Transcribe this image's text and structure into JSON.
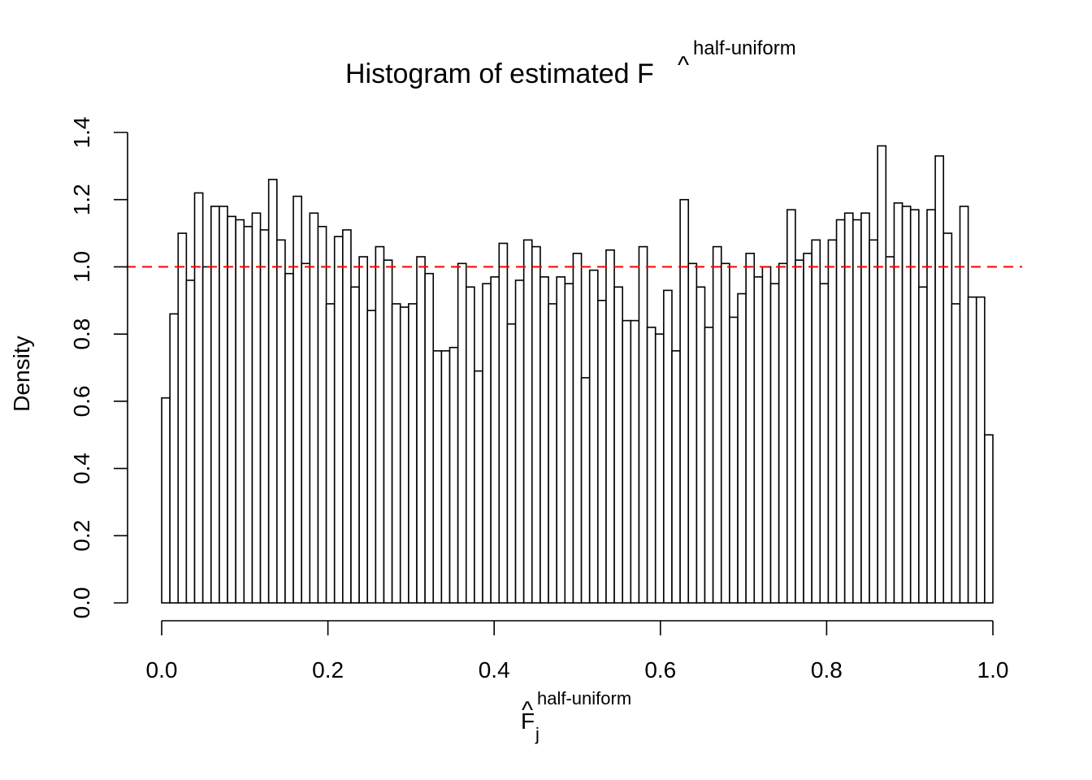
{
  "chart_data": {
    "type": "histogram",
    "title": "Histogram of estimated F",
    "title_hat": "^",
    "title_superscript": "half-uniform",
    "xlabel": "F",
    "xlabel_hat": "^",
    "xlabel_subscript": "j",
    "xlabel_superscript": "half-uniform",
    "ylabel": "Density",
    "xlim": [
      0,
      1
    ],
    "ylim": [
      0,
      1.4
    ],
    "x_ticks": [
      0.0,
      0.2,
      0.4,
      0.6,
      0.8,
      1.0
    ],
    "x_tick_labels": [
      "0.0",
      "0.2",
      "0.4",
      "0.6",
      "0.8",
      "1.0"
    ],
    "y_ticks": [
      0.0,
      0.2,
      0.4,
      0.6,
      0.8,
      1.0,
      1.2,
      1.4
    ],
    "y_tick_labels": [
      "0.0",
      "0.2",
      "0.4",
      "0.6",
      "0.8",
      "1.0",
      "1.2",
      "1.4"
    ],
    "bin_width": 0.01,
    "bin_start": 0,
    "values": [
      0.61,
      0.86,
      1.1,
      0.96,
      1.22,
      1.0,
      1.18,
      1.18,
      1.15,
      1.14,
      1.12,
      1.16,
      1.11,
      1.26,
      1.08,
      0.98,
      1.21,
      1.01,
      1.16,
      1.12,
      0.89,
      1.09,
      1.11,
      0.94,
      1.03,
      0.87,
      1.06,
      1.02,
      0.89,
      0.88,
      0.89,
      1.03,
      0.98,
      0.75,
      0.75,
      0.76,
      1.01,
      0.94,
      0.69,
      0.95,
      0.97,
      1.07,
      0.83,
      0.96,
      1.08,
      1.06,
      0.97,
      0.89,
      0.97,
      0.95,
      1.04,
      0.67,
      0.99,
      0.9,
      1.05,
      0.94,
      0.84,
      0.84,
      1.06,
      0.82,
      0.8,
      0.93,
      0.75,
      1.2,
      1.01,
      0.94,
      0.82,
      1.06,
      1.01,
      0.85,
      0.92,
      1.04,
      0.97,
      1.0,
      0.95,
      1.01,
      1.17,
      1.02,
      1.04,
      1.08,
      0.95,
      1.08,
      1.14,
      1.16,
      1.14,
      1.16,
      1.08,
      1.36,
      1.03,
      1.19,
      1.18,
      1.17,
      0.94,
      1.17,
      1.33,
      1.1,
      0.89,
      1.18,
      0.91,
      0.91,
      0.5
    ],
    "reference_line": {
      "y": 1.0,
      "style": "dashed",
      "color": "#ff0000"
    },
    "bar_fill": "#ffffff",
    "bar_stroke": "#000000",
    "grid": false,
    "legend": "none"
  }
}
